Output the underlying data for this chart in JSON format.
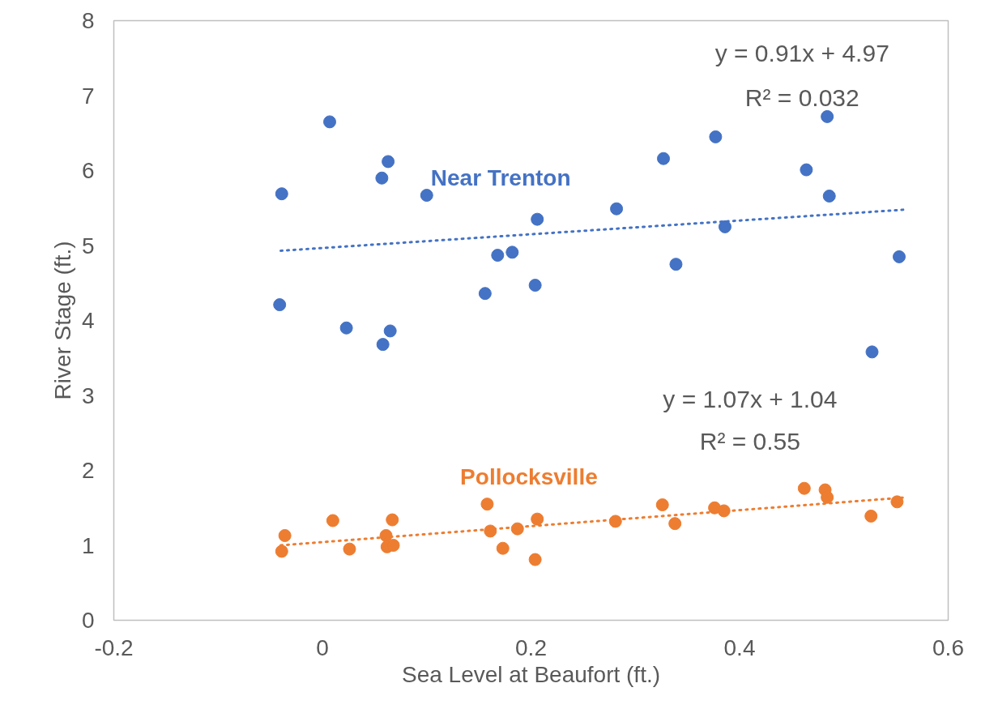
{
  "chart_data": {
    "type": "scatter",
    "xlabel": "Sea Level at Beaufort (ft.)",
    "ylabel": "River Stage (ft.)",
    "xlim": [
      -0.2,
      0.6
    ],
    "ylim": [
      0,
      8
    ],
    "xticks": [
      -0.2,
      0,
      0.2,
      0.4,
      0.6
    ],
    "yticks": [
      0,
      1,
      2,
      3,
      4,
      5,
      6,
      7,
      8
    ],
    "grid": false,
    "series": [
      {
        "name": "Near Trenton",
        "marker": "circle",
        "color": "#4472c4",
        "x": [
          0.007,
          0.063,
          0.057,
          -0.039,
          0.1,
          0.168,
          0.182,
          0.156,
          -0.041,
          0.023,
          0.065,
          0.058,
          0.206,
          0.282,
          0.327,
          0.377,
          0.484,
          0.464,
          0.486,
          0.386,
          0.339,
          0.204,
          0.553,
          0.527
        ],
        "values": [
          6.65,
          6.12,
          5.9,
          5.69,
          5.67,
          4.87,
          4.91,
          4.36,
          4.21,
          3.9,
          3.86,
          3.68,
          5.35,
          5.49,
          6.16,
          6.45,
          6.72,
          6.01,
          5.66,
          5.25,
          4.75,
          4.47,
          4.85,
          3.58
        ]
      },
      {
        "name": "Pollocksville",
        "marker": "circle",
        "color": "#ed7d31",
        "x": [
          -0.036,
          -0.039,
          0.01,
          0.026,
          0.067,
          0.061,
          0.062,
          0.068,
          0.158,
          0.161,
          0.173,
          0.187,
          0.206,
          0.281,
          0.326,
          0.338,
          0.376,
          0.385,
          0.462,
          0.482,
          0.484,
          0.551,
          0.526,
          0.204
        ],
        "values": [
          1.13,
          0.92,
          1.33,
          0.95,
          1.34,
          1.13,
          0.98,
          1.0,
          1.55,
          1.19,
          0.96,
          1.22,
          1.35,
          1.32,
          1.54,
          1.29,
          1.5,
          1.46,
          1.76,
          1.74,
          1.64,
          1.58,
          1.39,
          0.81
        ]
      },
      {
        "type": "line",
        "marker": "none",
        "line_style": "dotted",
        "color": "#4472c4",
        "x": [
          -0.04,
          0.56
        ],
        "values": [
          4.93,
          5.48
        ]
      },
      {
        "type": "line",
        "marker": "none",
        "line_style": "dotted",
        "color": "#ed7d31",
        "x": [
          -0.04,
          0.56
        ],
        "values": [
          1.0,
          1.64
        ]
      }
    ],
    "annotations": [
      "y = 0.91x + 4.97",
      "R² = 0.032",
      "y = 1.07x + 1.04",
      "R² = 0.55"
    ]
  }
}
